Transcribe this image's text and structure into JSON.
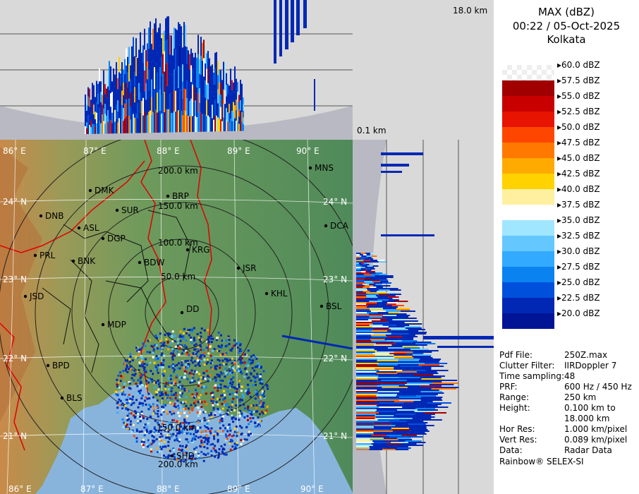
{
  "header": {
    "product": "MAX (dBZ)",
    "datetime": "00:22 / 05-Oct-2025",
    "station": "Kolkata"
  },
  "scale": {
    "top_height": "18.0 km",
    "bottom_height": "0.1 km"
  },
  "legend": [
    {
      "label": "60.0 dBZ",
      "color": ""
    },
    {
      "label": "57.5 dBZ",
      "color": "#a00000"
    },
    {
      "label": "55.0 dBZ",
      "color": "#c80000"
    },
    {
      "label": "52.5 dBZ",
      "color": "#e61400"
    },
    {
      "label": "50.0 dBZ",
      "color": "#ff4600"
    },
    {
      "label": "47.5 dBZ",
      "color": "#ff7800"
    },
    {
      "label": "45.0 dBZ",
      "color": "#ffaa00"
    },
    {
      "label": "42.5 dBZ",
      "color": "#ffd200"
    },
    {
      "label": "40.0 dBZ",
      "color": "#fff0a0"
    },
    {
      "label": "37.5 dBZ",
      "color": "#ffffff"
    },
    {
      "label": "35.0 dBZ",
      "color": "#a0e6ff"
    },
    {
      "label": "32.5 dBZ",
      "color": "#64c8ff"
    },
    {
      "label": "30.0 dBZ",
      "color": "#32aaff"
    },
    {
      "label": "27.5 dBZ",
      "color": "#0a82f0"
    },
    {
      "label": "25.0 dBZ",
      "color": "#0050dc"
    },
    {
      "label": "22.5 dBZ",
      "color": "#0028b4"
    },
    {
      "label": "20.0 dBZ",
      "color": "#001496"
    }
  ],
  "metadata": [
    {
      "key": "Pdf File:",
      "value": "250Z.max"
    },
    {
      "key": "Clutter Filter:",
      "value": "IIRDoppler 7"
    },
    {
      "key": "Time sampling:",
      "value": "48"
    },
    {
      "key": "PRF:",
      "value": "600 Hz / 450 Hz"
    },
    {
      "key": "Range:",
      "value": "250 km"
    },
    {
      "key": "Height:",
      "value": "0.100 km to"
    },
    {
      "key": "",
      "value": "18.000 km"
    },
    {
      "key": "Hor Res:",
      "value": "1.000 km/pixel"
    },
    {
      "key": "Vert Res:",
      "value": "0.089 km/pixel"
    },
    {
      "key": "Data:",
      "value": "Radar Data"
    }
  ],
  "footer": "Rainbow® SELEX-SI",
  "map": {
    "lon_labels": [
      "86° E",
      "87° E",
      "88° E",
      "89° E",
      "90° E"
    ],
    "lat_labels": [
      "24° N",
      "23° N",
      "22° N",
      "21° N"
    ],
    "range_rings": [
      "50.0 km",
      "100.0 km",
      "150.0 km",
      "200.0 km"
    ],
    "cities": [
      "MNS",
      "DMK",
      "BRP",
      "DNB",
      "SUR",
      "ASL",
      "DGP",
      "DCA",
      "KRG",
      "PRL",
      "BNK",
      "BDW",
      "JSR",
      "KHL",
      "JSD",
      "BSL",
      "DD",
      "MDP",
      "BPD",
      "BLS",
      "SHD"
    ]
  }
}
